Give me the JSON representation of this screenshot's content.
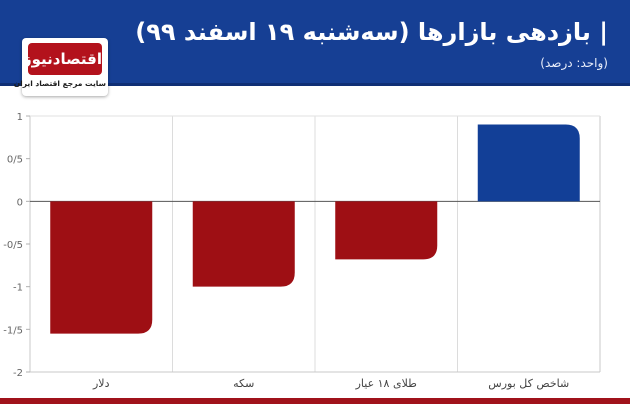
{
  "header": {
    "title": "| بازدهی بازارها (سه‌شنبه ۱۹ اسفند ۹۹)",
    "unit": "(واحد: درصد)"
  },
  "logo": {
    "name": "اقتصادنیوز",
    "tagline": "سایت مرجع اقتصاد ایران"
  },
  "colors": {
    "header": "#163f94",
    "negative": "#9e0f14",
    "positive": "#123f97",
    "bottom_bar": "#a0121b"
  },
  "chart_data": {
    "type": "bar",
    "title": "",
    "xlabel": "",
    "ylabel": "",
    "categories": [
      "دلار",
      "سکه",
      "طلای ۱۸ عیار",
      "شاخص کل بورس"
    ],
    "values": [
      -1.55,
      -1.0,
      -0.68,
      0.9
    ],
    "ylim": [
      -2,
      1
    ],
    "yticks": [
      1,
      0.5,
      0,
      -0.5,
      -1,
      -1.5,
      -2
    ],
    "ytick_labels": [
      "1",
      "0/5",
      "0",
      "-0/5",
      "-1",
      "-1/5",
      "-2"
    ],
    "grid": true,
    "legend": "none"
  }
}
